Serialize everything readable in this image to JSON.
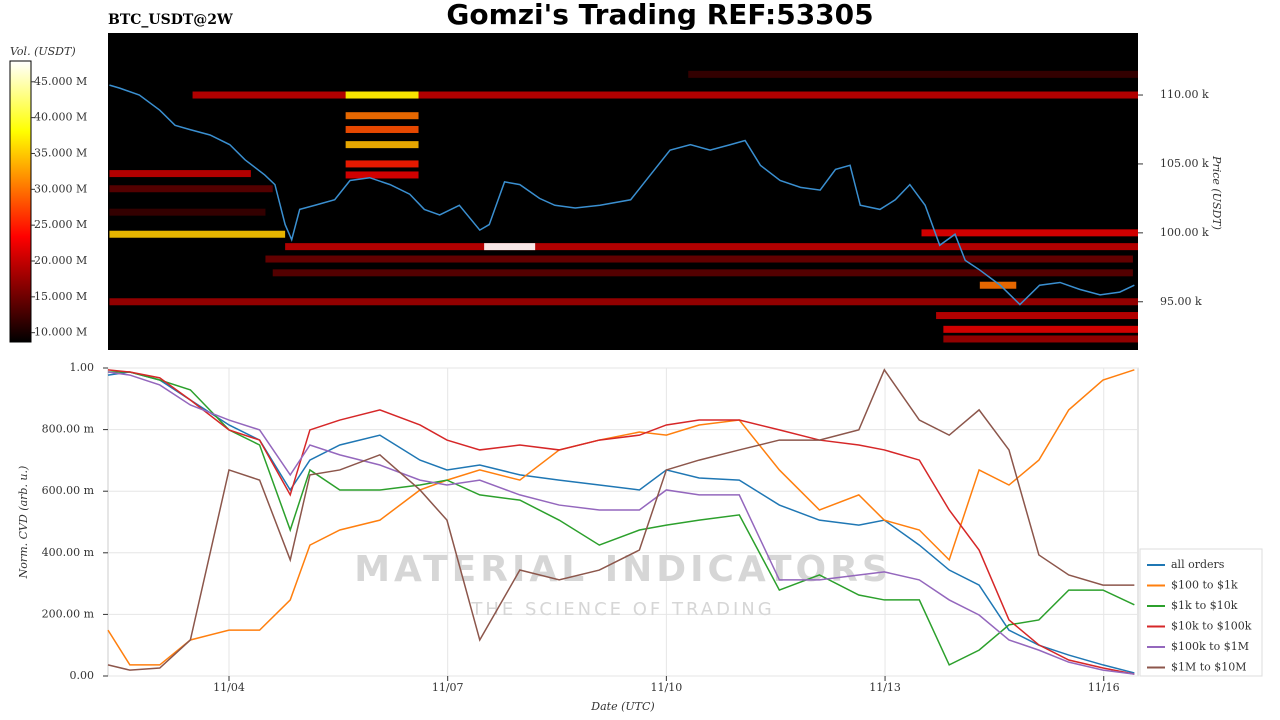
{
  "chart_data": [
    {
      "type": "heatmap",
      "title": "Gomzi's Trading REF:53305",
      "subtitle": "BTC_USDT@2W",
      "y_label": "Price (USDT)",
      "xlim": [
        2.34,
        16.47
      ],
      "ylim": [
        91500,
        114500
      ],
      "yticks": [
        {
          "value": 95000,
          "label": "95.00 k"
        },
        {
          "value": 100000,
          "label": "100.00 k"
        },
        {
          "value": 105000,
          "label": "105.00 k"
        },
        {
          "value": 110000,
          "label": "110.00 k"
        }
      ],
      "colorbar": {
        "label": "Vol. (USDT)",
        "zlim": [
          8700000,
          47900000
        ],
        "ticks": [
          {
            "value": 10000000,
            "label": "10.000 M"
          },
          {
            "value": 15000000,
            "label": "15.000 M"
          },
          {
            "value": 20000000,
            "label": "20.000 M"
          },
          {
            "value": 25000000,
            "label": "25.000 M"
          },
          {
            "value": 30000000,
            "label": "30.000 M"
          },
          {
            "value": 35000000,
            "label": "35.000 M"
          },
          {
            "value": 40000000,
            "label": "40.000 M"
          },
          {
            "value": 45000000,
            "label": "45.000 M"
          }
        ]
      },
      "bands": [
        {
          "price": 110000,
          "start": 3.5,
          "end": 16.47,
          "volume": 20000000
        },
        {
          "price": 111500,
          "start": 10.3,
          "end": 16.47,
          "volume": 12000000
        },
        {
          "price": 104300,
          "start": 2.36,
          "end": 4.3,
          "volume": 20000000
        },
        {
          "price": 103200,
          "start": 2.36,
          "end": 4.6,
          "volume": 14000000
        },
        {
          "price": 101500,
          "start": 2.36,
          "end": 4.5,
          "volume": 12000000
        },
        {
          "price": 99900,
          "start": 2.36,
          "end": 4.77,
          "volume": 35000000
        },
        {
          "price": 99000,
          "start": 4.77,
          "end": 16.47,
          "volume": 20000000
        },
        {
          "price": 99000,
          "start": 7.5,
          "end": 8.2,
          "volume": 48000000
        },
        {
          "price": 98100,
          "start": 4.5,
          "end": 16.4,
          "volume": 15000000
        },
        {
          "price": 97100,
          "start": 4.6,
          "end": 16.4,
          "volume": 14000000
        },
        {
          "price": 95000,
          "start": 2.36,
          "end": 16.47,
          "volume": 18000000
        },
        {
          "price": 100000,
          "start": 13.5,
          "end": 16.47,
          "volume": 22000000
        },
        {
          "price": 110000,
          "start": 5.6,
          "end": 6.6,
          "volume": 38000000
        },
        {
          "price": 108500,
          "start": 5.6,
          "end": 6.6,
          "volume": 30000000
        },
        {
          "price": 107500,
          "start": 5.6,
          "end": 6.6,
          "volume": 28000000
        },
        {
          "price": 106400,
          "start": 5.6,
          "end": 6.6,
          "volume": 34000000
        },
        {
          "price": 105000,
          "start": 5.6,
          "end": 6.6,
          "volume": 25000000
        },
        {
          "price": 104200,
          "start": 5.6,
          "end": 6.6,
          "volume": 22000000
        },
        {
          "price": 96200,
          "start": 14.3,
          "end": 14.8,
          "volume": 30000000
        },
        {
          "price": 94000,
          "start": 13.7,
          "end": 16.47,
          "volume": 20000000
        },
        {
          "price": 93000,
          "start": 13.8,
          "end": 16.47,
          "volume": 22000000
        },
        {
          "price": 92300,
          "start": 13.8,
          "end": 16.47,
          "volume": 18000000
        }
      ],
      "series": [
        {
          "color": "#3a8fd0",
          "x": [
            2.36,
            2.5,
            2.77,
            3.05,
            3.26,
            3.46,
            3.74,
            4.01,
            4.22,
            4.49,
            4.63,
            4.77,
            4.86,
            4.97,
            5.18,
            5.45,
            5.66,
            5.93,
            6.21,
            6.48,
            6.68,
            6.89,
            7.16,
            7.44,
            7.57,
            7.78,
            7.99,
            8.26,
            8.47,
            8.75,
            9.09,
            9.51,
            9.78,
            10.05,
            10.33,
            10.6,
            10.88,
            11.08,
            11.29,
            11.56,
            11.84,
            12.11,
            12.32,
            12.52,
            12.66,
            12.93,
            13.14,
            13.34,
            13.55,
            13.75,
            13.96,
            14.1,
            14.3,
            14.58,
            14.85,
            15.12,
            15.4,
            15.67,
            15.95,
            16.22,
            16.42
          ],
          "values": [
            110720,
            110500,
            110000,
            108900,
            107800,
            107500,
            107100,
            106400,
            105300,
            104200,
            103500,
            100600,
            99500,
            101700,
            102000,
            102400,
            103800,
            104000,
            103500,
            102800,
            101700,
            101300,
            102000,
            100200,
            100600,
            103700,
            103500,
            102500,
            102000,
            101800,
            102000,
            102400,
            104200,
            106000,
            106400,
            106000,
            106400,
            106700,
            104900,
            103800,
            103300,
            103100,
            104600,
            104900,
            102000,
            101700,
            102400,
            103500,
            102000,
            99100,
            99900,
            98000,
            97300,
            96200,
            94800,
            96200,
            96400,
            95900,
            95500,
            95700,
            96200
          ]
        }
      ]
    },
    {
      "type": "line",
      "x_label": "Date (UTC)",
      "y_label": "Norm. CVD (arb. u.)",
      "xlim": [
        2.34,
        16.47
      ],
      "ylim": [
        0,
        1
      ],
      "xticks": [
        {
          "value": 4,
          "label": "11/04"
        },
        {
          "value": 7,
          "label": "11/07"
        },
        {
          "value": 10,
          "label": "11/10"
        },
        {
          "value": 13,
          "label": "11/13"
        },
        {
          "value": 16,
          "label": "11/16"
        }
      ],
      "yticks": [
        {
          "value": 0,
          "label": "0.00"
        },
        {
          "value": 0.2,
          "label": "200.00 m"
        },
        {
          "value": 0.4,
          "label": "400.00 m"
        },
        {
          "value": 0.6,
          "label": "600.00 m"
        },
        {
          "value": 0.8,
          "label": "800.00 m"
        },
        {
          "value": 1,
          "label": "1.00"
        }
      ],
      "grid": true,
      "legend": "lower right",
      "watermark": [
        "MATERIAL INDICATORS",
        "THE SCIENCE OF TRADING"
      ],
      "x": [
        2.34,
        2.64,
        3.05,
        3.47,
        4.0,
        4.42,
        4.84,
        5.11,
        5.52,
        6.07,
        6.62,
        6.99,
        7.44,
        7.99,
        8.53,
        9.08,
        9.63,
        10.0,
        10.45,
        11.0,
        11.55,
        12.1,
        12.64,
        12.99,
        13.47,
        13.88,
        14.29,
        14.7,
        15.11,
        15.52,
        15.99,
        16.42
      ],
      "series": [
        {
          "name": "all orders",
          "color": "#1f77b4",
          "values": [
            0.977,
            0.987,
            0.961,
            0.896,
            0.815,
            0.766,
            0.604,
            0.701,
            0.75,
            0.782,
            0.701,
            0.669,
            0.685,
            0.653,
            0.636,
            0.62,
            0.604,
            0.669,
            0.643,
            0.636,
            0.555,
            0.506,
            0.49,
            0.506,
            0.425,
            0.344,
            0.295,
            0.149,
            0.1,
            0.068,
            0.036,
            0.01
          ]
        },
        {
          "name": "$100 to $1k",
          "color": "#ff7f0e",
          "values": [
            0.149,
            0.036,
            0.036,
            0.117,
            0.149,
            0.149,
            0.247,
            0.425,
            0.474,
            0.506,
            0.604,
            0.636,
            0.669,
            0.636,
            0.734,
            0.766,
            0.792,
            0.782,
            0.815,
            0.831,
            0.669,
            0.539,
            0.588,
            0.506,
            0.474,
            0.377,
            0.669,
            0.62,
            0.701,
            0.864,
            0.961,
            0.994
          ]
        },
        {
          "name": "$1k to $10k",
          "color": "#2ca02c",
          "values": [
            0.987,
            0.987,
            0.961,
            0.929,
            0.799,
            0.75,
            0.474,
            0.669,
            0.604,
            0.604,
            0.62,
            0.636,
            0.588,
            0.571,
            0.506,
            0.425,
            0.474,
            0.49,
            0.506,
            0.523,
            0.279,
            0.328,
            0.263,
            0.247,
            0.247,
            0.036,
            0.084,
            0.166,
            0.182,
            0.279,
            0.279,
            0.231
          ]
        },
        {
          "name": "$10k to $100k",
          "color": "#d62728",
          "values": [
            0.994,
            0.987,
            0.968,
            0.896,
            0.799,
            0.766,
            0.588,
            0.799,
            0.831,
            0.864,
            0.815,
            0.766,
            0.734,
            0.75,
            0.734,
            0.766,
            0.782,
            0.815,
            0.831,
            0.831,
            0.799,
            0.766,
            0.75,
            0.734,
            0.701,
            0.539,
            0.409,
            0.182,
            0.101,
            0.052,
            0.026,
            0.006
          ]
        },
        {
          "name": "$100k to $1M",
          "color": "#9467bd",
          "values": [
            0.987,
            0.977,
            0.945,
            0.88,
            0.831,
            0.799,
            0.653,
            0.75,
            0.718,
            0.685,
            0.636,
            0.62,
            0.636,
            0.588,
            0.555,
            0.539,
            0.539,
            0.604,
            0.588,
            0.588,
            0.312,
            0.312,
            0.328,
            0.338,
            0.312,
            0.247,
            0.198,
            0.117,
            0.084,
            0.045,
            0.019,
            0.006
          ]
        },
        {
          "name": "$1M to $10M",
          "color": "#8c564b",
          "values": [
            0.036,
            0.019,
            0.026,
            0.117,
            0.669,
            0.636,
            0.377,
            0.653,
            0.669,
            0.718,
            0.604,
            0.506,
            0.117,
            0.344,
            0.312,
            0.344,
            0.409,
            0.669,
            0.701,
            0.734,
            0.766,
            0.766,
            0.799,
            0.994,
            0.831,
            0.782,
            0.864,
            0.734,
            0.393,
            0.328,
            0.295,
            0.295
          ]
        }
      ]
    }
  ]
}
